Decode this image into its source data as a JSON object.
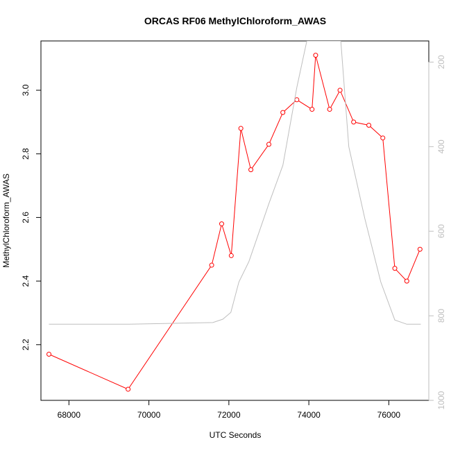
{
  "chart_data": {
    "type": "line",
    "title": "ORCAS RF06 MethylChloroform_AWAS",
    "xlabel": "UTC Seconds",
    "ylabel": "MethylChloroform_AWAS",
    "xlim": [
      67300,
      77000
    ],
    "ylim": [
      2.025,
      3.155
    ],
    "y2lim": [
      1000,
      150
    ],
    "y2_reversed": true,
    "x_ticks": [
      68000,
      70000,
      72000,
      74000,
      76000
    ],
    "x_tick_labels": [
      "68000",
      "70000",
      "72000",
      "74000",
      "76000"
    ],
    "y_ticks": [
      2.2,
      2.4,
      2.6,
      2.8,
      3.0
    ],
    "y_tick_labels": [
      "2.2",
      "2.4",
      "2.6",
      "2.8",
      "3.0"
    ],
    "y2_ticks": [
      200,
      400,
      600,
      800,
      1000
    ],
    "y2_tick_labels": [
      "200",
      "400",
      "600",
      "800",
      "1000"
    ],
    "grid": false,
    "series": [
      {
        "axis": "left",
        "color": "#ff0000",
        "markers": "open-circle",
        "x": [
          67500,
          69480,
          71570,
          71820,
          72060,
          72300,
          72550,
          73000,
          73350,
          73700,
          74080,
          74170,
          74520,
          74780,
          75120,
          75500,
          75850,
          76150,
          76450,
          76780
        ],
        "values": [
          2.17,
          2.06,
          2.45,
          2.58,
          2.48,
          2.88,
          2.75,
          2.83,
          2.93,
          2.97,
          2.94,
          3.11,
          2.94,
          3.0,
          2.9,
          2.89,
          2.85,
          2.44,
          2.4,
          2.5
        ]
      },
      {
        "axis": "right",
        "color": "#bebebe",
        "markers": "none",
        "x": [
          67500,
          69500,
          70500,
          71600,
          71850,
          72050,
          72250,
          72500,
          73000,
          73350,
          73700,
          73950,
          74250,
          74800,
          75000,
          75400,
          75800,
          76150,
          76450,
          76800
        ],
        "values": [
          820,
          820,
          818,
          816,
          808,
          792,
          720,
          672,
          535,
          444,
          260,
          150,
          150,
          150,
          400,
          570,
          720,
          810,
          820,
          820
        ]
      }
    ]
  }
}
